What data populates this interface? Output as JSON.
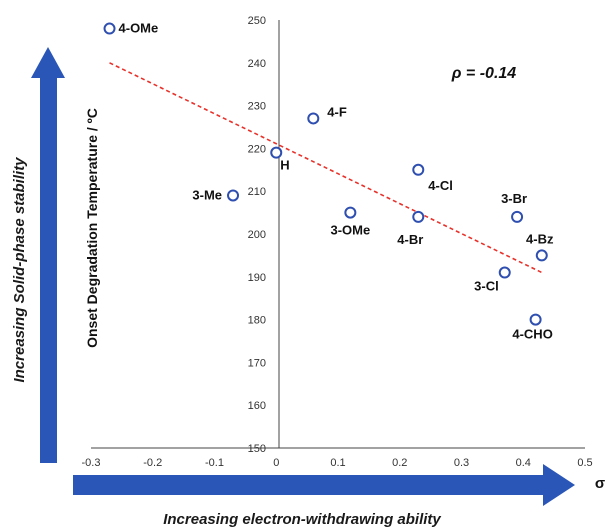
{
  "chart_data": {
    "type": "scatter",
    "title": "",
    "xlabel": "σ",
    "ylabel": "Onset Degradation Temperature / ºC",
    "xlim": [
      -0.3,
      0.5
    ],
    "ylim": [
      150,
      250
    ],
    "x_ticks": [
      "-0.3",
      "-0.2",
      "-0.1",
      "0",
      "0.1",
      "0.2",
      "0.3",
      "0.4",
      "0.5"
    ],
    "y_ticks": [
      "150",
      "160",
      "170",
      "180",
      "190",
      "200",
      "210",
      "220",
      "230",
      "240",
      "250"
    ],
    "grid": false,
    "points": [
      {
        "label": "4-OMe",
        "x": -0.27,
        "y": 248
      },
      {
        "label": "4-F",
        "x": 0.06,
        "y": 227
      },
      {
        "label": "H",
        "x": 0.0,
        "y": 219
      },
      {
        "label": "3-Me",
        "x": -0.07,
        "y": 209
      },
      {
        "label": "3-OMe",
        "x": 0.12,
        "y": 205
      },
      {
        "label": "4-Cl",
        "x": 0.23,
        "y": 215
      },
      {
        "label": "4-Br",
        "x": 0.23,
        "y": 204
      },
      {
        "label": "3-Br",
        "x": 0.39,
        "y": 204
      },
      {
        "label": "4-Bz",
        "x": 0.43,
        "y": 195
      },
      {
        "label": "3-Cl",
        "x": 0.37,
        "y": 191
      },
      {
        "label": "4-CHO",
        "x": 0.42,
        "y": 180
      }
    ],
    "trendline": {
      "style": "dashed",
      "x": [
        -0.27,
        0.43
      ],
      "y": [
        240,
        191
      ]
    },
    "annotation": "ρ = -0.14",
    "colors": {
      "marker": "#2e4fb0",
      "trendline": "#e8312a",
      "arrow": "#2a56b8"
    },
    "y_arrow_label": "Increasing Solid-phase stability",
    "x_arrow_label": "Increasing electron-withdrawing ability"
  }
}
